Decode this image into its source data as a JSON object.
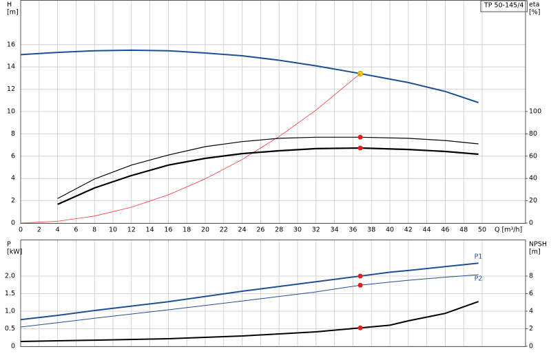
{
  "chart_data": [
    {
      "type": "line",
      "label_box": "TP 50-145/4",
      "y_label": "H",
      "y_unit": "[m]",
      "y2_label": "eta",
      "y2_unit": "[%]",
      "x_label": "Q [m³/h]",
      "x": [
        0,
        4,
        8,
        12,
        16,
        20,
        24,
        28,
        32,
        36.8,
        42,
        46,
        49.6
      ],
      "xlim": [
        0,
        54.7
      ],
      "xticks": [
        0,
        2,
        4,
        6,
        8,
        10,
        12,
        14,
        16,
        18,
        20,
        22,
        24,
        26,
        28,
        30,
        32,
        34,
        36,
        38,
        40,
        42,
        44,
        46,
        48,
        50
      ],
      "ylim": [
        0,
        20
      ],
      "yticks": [
        0,
        2,
        4,
        6,
        8,
        10,
        12,
        14,
        16
      ],
      "y2lim": [
        0,
        200
      ],
      "y2ticks": [
        0,
        20,
        40,
        60,
        80,
        100
      ],
      "grid": true,
      "duty_x": 36.8,
      "series": [
        {
          "color": "#1f4e99",
          "line_width": 2,
          "marker_color": "#f5d000",
          "values": [
            15.1,
            15.3,
            15.45,
            15.5,
            15.45,
            15.25,
            15.0,
            14.6,
            14.1,
            13.4,
            12.6,
            11.8,
            10.8
          ]
        },
        {
          "color": "#ff3333",
          "line_width": 0.8,
          "values": [
            0,
            0.16,
            0.63,
            1.42,
            2.53,
            3.96,
            5.7,
            7.76,
            10.13,
            13.4,
            null,
            null,
            null
          ]
        },
        {
          "color": "#000000",
          "line_width": 1.2,
          "axis": "y2",
          "marker_color": "#e02020",
          "values": [
            null,
            22,
            39.5,
            52,
            61,
            68.5,
            73,
            76,
            77,
            77,
            76,
            74,
            71
          ]
        },
        {
          "color": "#000000",
          "line_width": 2.2,
          "axis": "y2",
          "marker_color": "#e02020",
          "values": [
            null,
            16.7,
            31.5,
            42.6,
            52,
            58,
            62.3,
            64.8,
            66.7,
            67.3,
            66,
            64.2,
            61.7
          ]
        }
      ]
    },
    {
      "type": "line",
      "y_label": "P",
      "y_unit": "[kW]",
      "y2_label": "NPSH",
      "y2_unit": "[m]",
      "x": [
        0,
        4,
        8,
        16,
        24,
        32,
        36.8,
        40,
        42,
        46,
        49.6
      ],
      "xlim": [
        0,
        54.7
      ],
      "xticks": [
        0,
        2,
        4,
        6,
        8,
        10,
        12,
        14,
        16,
        18,
        20,
        22,
        24,
        26,
        28,
        30,
        32,
        34,
        36,
        38,
        40,
        42,
        44,
        46,
        48,
        50
      ],
      "ylim": [
        0,
        3.04
      ],
      "yticks": [
        0,
        0.5,
        {
          "value": 1,
          "label": "1.0"
        },
        1.5,
        {
          "value": 2,
          "label": "2.0"
        }
      ],
      "y2lim": [
        0,
        12.16
      ],
      "y2ticks": [
        0,
        2,
        4,
        6,
        8
      ],
      "grid": true,
      "duty_x": 36.8,
      "series": [
        {
          "name": "P1",
          "color": "#1f4e99",
          "line_width": 2,
          "marker_color": "#e02020",
          "values": [
            0.76,
            0.88,
            1.02,
            1.27,
            1.57,
            1.84,
            2.0,
            2.11,
            2.16,
            2.27,
            2.37
          ]
        },
        {
          "name": "P2",
          "color": "#1f4e99",
          "line_width": 1,
          "marker_color": "#e02020",
          "values": [
            0.55,
            0.67,
            0.8,
            1.04,
            1.29,
            1.55,
            1.74,
            1.83,
            1.88,
            1.97,
            2.04
          ]
        },
        {
          "color": "#000000",
          "line_width": 2,
          "axis": "y2",
          "marker_color": "#e02020",
          "values": [
            0.55,
            0.63,
            0.7,
            0.86,
            1.18,
            1.65,
            2.1,
            2.4,
            2.9,
            3.75,
            5.1
          ]
        }
      ]
    }
  ]
}
